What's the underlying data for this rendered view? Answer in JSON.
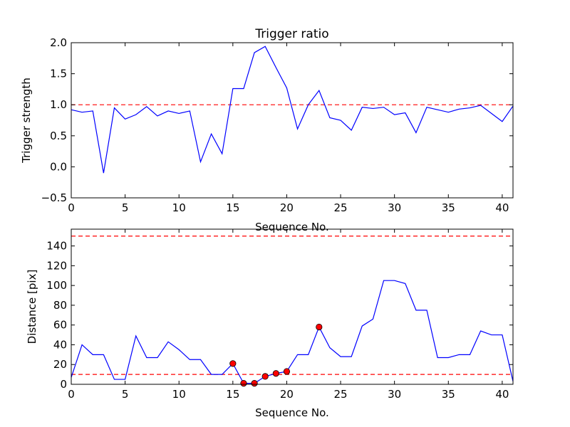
{
  "chart_data": [
    {
      "type": "line",
      "title": "Trigger ratio",
      "xlabel": "Sequence No.",
      "ylabel": "Trigger strength",
      "xlim": [
        0,
        41
      ],
      "ylim": [
        -0.5,
        2.0
      ],
      "xticks": [
        0,
        5,
        10,
        15,
        20,
        25,
        30,
        35,
        40
      ],
      "yticks": [
        -0.5,
        0.0,
        0.5,
        1.0,
        1.5,
        2.0
      ],
      "ytick_labels": [
        "−0.5",
        "0.0",
        "0.5",
        "1.0",
        "1.5",
        "2.0"
      ],
      "grid": false,
      "line_color": "#0000ff",
      "reference_lines": [
        {
          "y": 1.0,
          "color": "#ff0000",
          "style": "dashed"
        }
      ],
      "x": [
        0,
        1,
        2,
        3,
        4,
        5,
        6,
        7,
        8,
        9,
        10,
        11,
        12,
        13,
        14,
        15,
        16,
        17,
        18,
        19,
        20,
        21,
        22,
        23,
        24,
        25,
        26,
        27,
        28,
        29,
        30,
        31,
        32,
        33,
        34,
        35,
        36,
        37,
        38,
        39,
        40,
        41
      ],
      "values": [
        0.92,
        0.88,
        0.9,
        -0.1,
        0.95,
        0.77,
        0.84,
        0.97,
        0.82,
        0.9,
        0.86,
        0.9,
        0.08,
        0.53,
        0.21,
        1.26,
        1.26,
        1.84,
        1.94,
        1.6,
        1.27,
        0.61,
        1.0,
        1.23,
        0.79,
        0.75,
        0.59,
        0.96,
        0.94,
        0.96,
        0.84,
        0.87,
        0.55,
        0.96,
        0.92,
        0.88,
        0.93,
        0.95,
        0.99,
        0.86,
        0.73,
        0.98
      ]
    },
    {
      "type": "line",
      "title": "",
      "xlabel": "Sequence No.",
      "ylabel": "Distance [pix]",
      "xlim": [
        0,
        41
      ],
      "ylim": [
        0,
        157
      ],
      "xticks": [
        0,
        5,
        10,
        15,
        20,
        25,
        30,
        35,
        40
      ],
      "yticks": [
        0,
        20,
        40,
        60,
        80,
        100,
        120,
        140
      ],
      "ytick_labels": [
        "0",
        "20",
        "40",
        "60",
        "80",
        "100",
        "120",
        "140"
      ],
      "grid": false,
      "line_color": "#0000ff",
      "reference_lines": [
        {
          "y": 150,
          "color": "#ff0000",
          "style": "dashed"
        },
        {
          "y": 10,
          "color": "#ff0000",
          "style": "dashed"
        }
      ],
      "x": [
        0,
        1,
        2,
        3,
        4,
        5,
        6,
        7,
        8,
        9,
        10,
        11,
        12,
        13,
        14,
        15,
        16,
        17,
        18,
        19,
        20,
        21,
        22,
        23,
        24,
        25,
        26,
        27,
        28,
        29,
        30,
        31,
        32,
        33,
        34,
        35,
        36,
        37,
        38,
        39,
        40,
        41
      ],
      "values": [
        7,
        40,
        30,
        30,
        5,
        5,
        49,
        27,
        27,
        43,
        35,
        25,
        25,
        10,
        10,
        21,
        1,
        1,
        8,
        11,
        13,
        30,
        30,
        58,
        37,
        28,
        28,
        59,
        66,
        105,
        105,
        102,
        75,
        75,
        27,
        27,
        30,
        30,
        54,
        50,
        50,
        3
      ],
      "markers": {
        "color": "#ff0000",
        "points": [
          {
            "x": 15,
            "y": 21
          },
          {
            "x": 16,
            "y": 1
          },
          {
            "x": 17,
            "y": 1
          },
          {
            "x": 18,
            "y": 8
          },
          {
            "x": 19,
            "y": 11
          },
          {
            "x": 20,
            "y": 13
          },
          {
            "x": 23,
            "y": 58
          }
        ]
      }
    }
  ]
}
